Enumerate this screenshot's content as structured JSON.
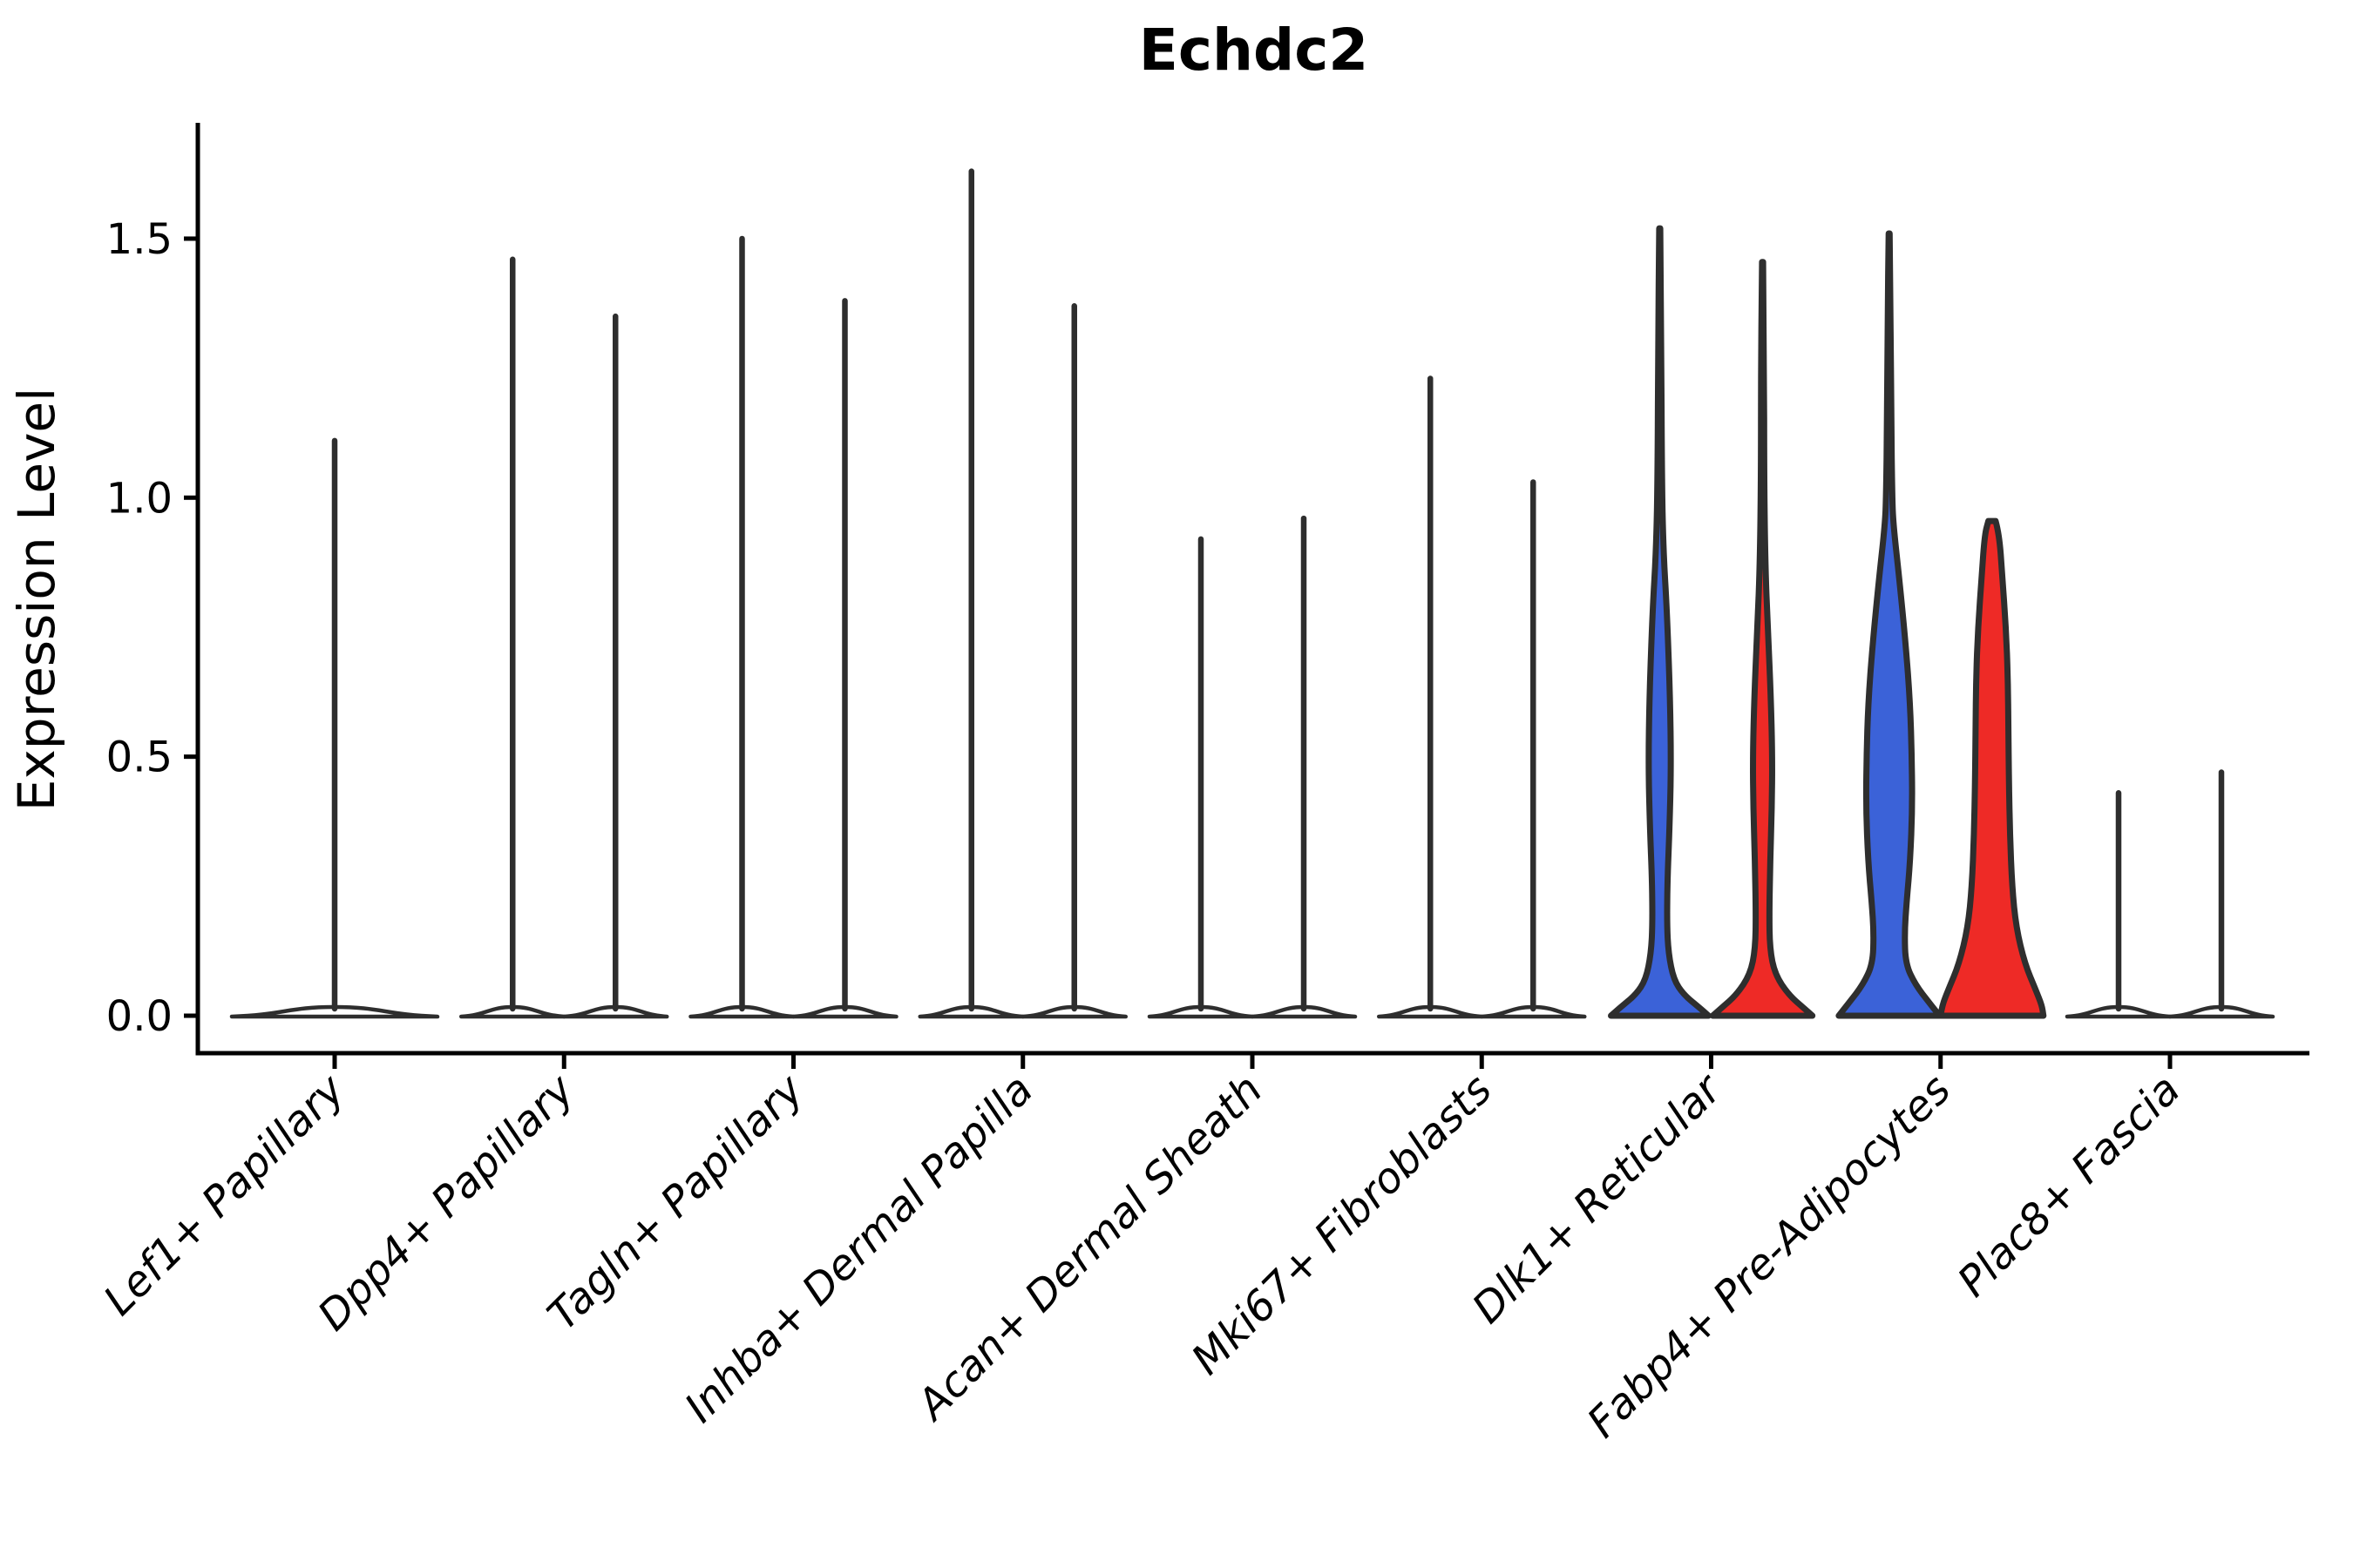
{
  "title": "Echdc2",
  "axes": {
    "ylabel": "Expression Level",
    "ytick_labels": [
      "0.0",
      "0.5",
      "1.0",
      "1.5"
    ]
  },
  "colors": {
    "blue": "#3B62D8",
    "red": "#EE2A26",
    "violin_outline": "#2E2E2E",
    "axis": "#000000",
    "background": "#FFFFFF"
  },
  "chart_data": {
    "type": "violin",
    "title": "Echdc2",
    "ylabel": "Expression Level",
    "ylim": [
      -0.08,
      1.72
    ],
    "yticks": [
      0.0,
      0.5,
      1.0,
      1.5
    ],
    "ytick_labels": [
      "0.0",
      "0.5",
      "1.0",
      "1.5"
    ],
    "grid": false,
    "legend": "none",
    "categories": [
      "Lef1+ Papillary",
      "Dpp4+ Papillary",
      "Tagln+ Papillary",
      "Inhba+ Dermal Papilla",
      "Acan+ Dermal Sheath",
      "Mki67+ Fibroblasts",
      "Dlk1+ Reticular",
      "Fabp4+ Pre-Adipocytes",
      "Plac8+ Fascia"
    ],
    "split_colors": {
      "left_filled": "#3B62D8",
      "right_filled": "#EE2A26",
      "unfilled": "#FFFFFF"
    },
    "violins": [
      {
        "category": "Lef1+ Papillary",
        "position": "single",
        "max_expression": 1.11,
        "fill": "white"
      },
      {
        "category": "Dpp4+ Papillary",
        "position": "left",
        "max_expression": 1.46,
        "fill": "white"
      },
      {
        "category": "Dpp4+ Papillary",
        "position": "right",
        "max_expression": 1.35,
        "fill": "white"
      },
      {
        "category": "Tagln+ Papillary",
        "position": "left",
        "max_expression": 1.5,
        "fill": "white"
      },
      {
        "category": "Tagln+ Papillary",
        "position": "right",
        "max_expression": 1.38,
        "fill": "white"
      },
      {
        "category": "Inhba+ Dermal Papilla",
        "position": "left",
        "max_expression": 1.63,
        "fill": "white"
      },
      {
        "category": "Inhba+ Dermal Papilla",
        "position": "right",
        "max_expression": 1.37,
        "fill": "white"
      },
      {
        "category": "Acan+ Dermal Sheath",
        "position": "left",
        "max_expression": 0.92,
        "fill": "white"
      },
      {
        "category": "Acan+ Dermal Sheath",
        "position": "right",
        "max_expression": 0.96,
        "fill": "white"
      },
      {
        "category": "Mki67+ Fibroblasts",
        "position": "left",
        "max_expression": 1.23,
        "fill": "white"
      },
      {
        "category": "Mki67+ Fibroblasts",
        "position": "right",
        "max_expression": 1.03,
        "fill": "white"
      },
      {
        "category": "Dlk1+ Reticular",
        "position": "left",
        "max_expression": 1.52,
        "fill": "blue",
        "profile": [
          [
            1.52,
            0.01
          ],
          [
            1.3,
            0.03
          ],
          [
            1.05,
            0.04
          ],
          [
            0.9,
            0.07
          ],
          [
            0.78,
            0.14
          ],
          [
            0.62,
            0.2
          ],
          [
            0.48,
            0.22
          ],
          [
            0.36,
            0.19
          ],
          [
            0.26,
            0.15
          ],
          [
            0.18,
            0.14
          ],
          [
            0.12,
            0.17
          ],
          [
            0.07,
            0.27
          ],
          [
            0.04,
            0.47
          ],
          [
            0.015,
            0.78
          ],
          [
            0,
            0.95
          ]
        ]
      },
      {
        "category": "Dlk1+ Reticular",
        "position": "right",
        "max_expression": 1.45,
        "fill": "red",
        "profile": [
          [
            1.455,
            0.01
          ],
          [
            1.25,
            0.03
          ],
          [
            1.05,
            0.03
          ],
          [
            0.88,
            0.05
          ],
          [
            0.75,
            0.1
          ],
          [
            0.62,
            0.16
          ],
          [
            0.5,
            0.19
          ],
          [
            0.4,
            0.18
          ],
          [
            0.3,
            0.15
          ],
          [
            0.2,
            0.13
          ],
          [
            0.13,
            0.14
          ],
          [
            0.08,
            0.24
          ],
          [
            0.04,
            0.51
          ],
          [
            0.015,
            0.8
          ],
          [
            0,
            0.97
          ]
        ]
      },
      {
        "category": "Fabp4+ Pre-Adipocytes",
        "position": "left",
        "max_expression": 1.51,
        "fill": "blue",
        "profile": [
          [
            1.51,
            0.01
          ],
          [
            1.35,
            0.03
          ],
          [
            1.15,
            0.04
          ],
          [
            1.0,
            0.06
          ],
          [
            0.95,
            0.08
          ],
          [
            0.85,
            0.19
          ],
          [
            0.72,
            0.32
          ],
          [
            0.6,
            0.41
          ],
          [
            0.5,
            0.44
          ],
          [
            0.4,
            0.45
          ],
          [
            0.3,
            0.41
          ],
          [
            0.22,
            0.34
          ],
          [
            0.16,
            0.3
          ],
          [
            0.1,
            0.32
          ],
          [
            0.06,
            0.51
          ],
          [
            0.025,
            0.78
          ],
          [
            0,
            0.98
          ]
        ]
      },
      {
        "category": "Fabp4+ Pre-Adipocytes",
        "position": "right",
        "max_expression": 0.94,
        "fill": "red",
        "profile": [
          [
            0.955,
            0.07
          ],
          [
            0.93,
            0.14
          ],
          [
            0.85,
            0.2
          ],
          [
            0.75,
            0.27
          ],
          [
            0.65,
            0.31
          ],
          [
            0.55,
            0.32
          ],
          [
            0.45,
            0.33
          ],
          [
            0.35,
            0.35
          ],
          [
            0.25,
            0.39
          ],
          [
            0.17,
            0.47
          ],
          [
            0.1,
            0.64
          ],
          [
            0.05,
            0.85
          ],
          [
            0.02,
            0.97
          ],
          [
            0,
            1.0
          ]
        ]
      },
      {
        "category": "Plac8+ Fascia",
        "position": "left",
        "max_expression": 0.43,
        "fill": "white"
      },
      {
        "category": "Plac8+ Fascia",
        "position": "right",
        "max_expression": 0.47,
        "fill": "white"
      }
    ]
  }
}
